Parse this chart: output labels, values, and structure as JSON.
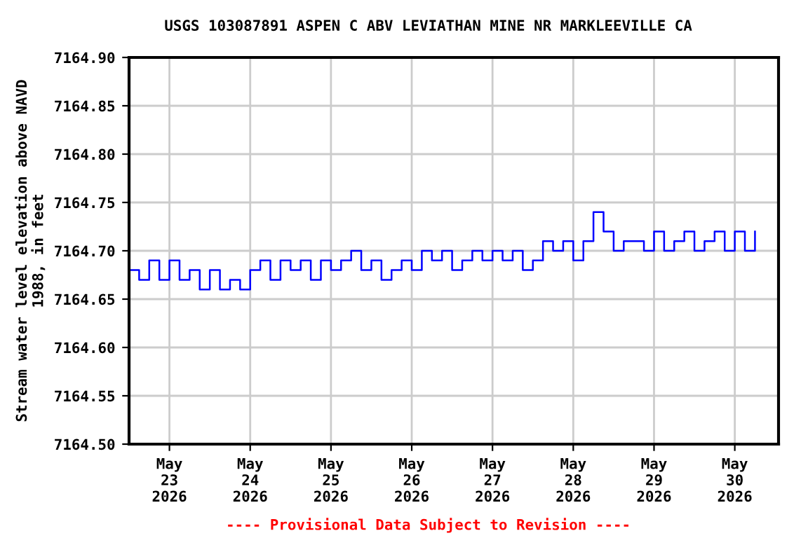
{
  "chart_data": {
    "type": "step",
    "title": "USGS 103087891 ASPEN C ABV LEVIATHAN MINE NR MARKLEEVILLE CA",
    "ylabel": "Stream water level elevation above NAVD\n1988, in feet",
    "annotations": [
      "---- Provisional Data Subject to Revision ----"
    ],
    "x": [
      "2026-05-22T12:00",
      "2026-05-22T15:00",
      "2026-05-22T18:00",
      "2026-05-22T21:00",
      "2026-05-23T00:00",
      "2026-05-23T03:00",
      "2026-05-23T06:00",
      "2026-05-23T09:00",
      "2026-05-23T12:00",
      "2026-05-23T15:00",
      "2026-05-23T18:00",
      "2026-05-23T21:00",
      "2026-05-24T00:00",
      "2026-05-24T03:00",
      "2026-05-24T06:00",
      "2026-05-24T09:00",
      "2026-05-24T12:00",
      "2026-05-24T15:00",
      "2026-05-24T18:00",
      "2026-05-24T21:00",
      "2026-05-25T00:00",
      "2026-05-25T03:00",
      "2026-05-25T06:00",
      "2026-05-25T09:00",
      "2026-05-25T12:00",
      "2026-05-25T15:00",
      "2026-05-25T18:00",
      "2026-05-25T21:00",
      "2026-05-26T00:00",
      "2026-05-26T03:00",
      "2026-05-26T06:00",
      "2026-05-26T09:00",
      "2026-05-26T12:00",
      "2026-05-26T15:00",
      "2026-05-26T18:00",
      "2026-05-26T21:00",
      "2026-05-27T00:00",
      "2026-05-27T03:00",
      "2026-05-27T06:00",
      "2026-05-27T09:00",
      "2026-05-27T12:00",
      "2026-05-27T15:00",
      "2026-05-27T18:00",
      "2026-05-27T21:00",
      "2026-05-28T00:00",
      "2026-05-28T03:00",
      "2026-05-28T06:00",
      "2026-05-28T09:00",
      "2026-05-28T12:00",
      "2026-05-28T15:00",
      "2026-05-28T18:00",
      "2026-05-28T21:00",
      "2026-05-29T00:00",
      "2026-05-29T03:00",
      "2026-05-29T06:00",
      "2026-05-29T09:00",
      "2026-05-29T12:00",
      "2026-05-29T15:00",
      "2026-05-29T18:00",
      "2026-05-29T21:00",
      "2026-05-30T00:00",
      "2026-05-30T03:00",
      "2026-05-30T06:00"
    ],
    "series": [
      {
        "color": "#0000ff",
        "values": [
          7164.68,
          7164.67,
          7164.69,
          7164.67,
          7164.69,
          7164.67,
          7164.68,
          7164.66,
          7164.68,
          7164.66,
          7164.67,
          7164.66,
          7164.68,
          7164.69,
          7164.67,
          7164.69,
          7164.68,
          7164.69,
          7164.67,
          7164.69,
          7164.68,
          7164.69,
          7164.7,
          7164.68,
          7164.69,
          7164.67,
          7164.68,
          7164.69,
          7164.68,
          7164.7,
          7164.69,
          7164.7,
          7164.68,
          7164.69,
          7164.7,
          7164.69,
          7164.7,
          7164.69,
          7164.7,
          7164.68,
          7164.69,
          7164.71,
          7164.7,
          7164.71,
          7164.69,
          7164.71,
          7164.74,
          7164.72,
          7164.7,
          7164.71,
          7164.71,
          7164.7,
          7164.72,
          7164.7,
          7164.71,
          7164.72,
          7164.7,
          7164.71,
          7164.72,
          7164.7,
          7164.72,
          7164.7,
          7164.72
        ]
      }
    ],
    "xlim": [
      "2026-05-22T12:00",
      "2026-05-30T13:00"
    ],
    "xticks": [
      {
        "value": "2026-05-23",
        "label": "May\n23\n2026"
      },
      {
        "value": "2026-05-24",
        "label": "May\n24\n2026"
      },
      {
        "value": "2026-05-25",
        "label": "May\n25\n2026"
      },
      {
        "value": "2026-05-26",
        "label": "May\n26\n2026"
      },
      {
        "value": "2026-05-27",
        "label": "May\n27\n2026"
      },
      {
        "value": "2026-05-28",
        "label": "May\n28\n2026"
      },
      {
        "value": "2026-05-29",
        "label": "May\n29\n2026"
      },
      {
        "value": "2026-05-30",
        "label": "May\n30\n2026"
      }
    ],
    "ylim": [
      7164.5,
      7164.9
    ],
    "yticks": [
      {
        "value": 7164.5,
        "label": "7164.50"
      },
      {
        "value": 7164.55,
        "label": "7164.55"
      },
      {
        "value": 7164.6,
        "label": "7164.60"
      },
      {
        "value": 7164.65,
        "label": "7164.65"
      },
      {
        "value": 7164.7,
        "label": "7164.70"
      },
      {
        "value": 7164.75,
        "label": "7164.75"
      },
      {
        "value": 7164.8,
        "label": "7164.80"
      },
      {
        "value": 7164.85,
        "label": "7164.85"
      },
      {
        "value": 7164.9,
        "label": "7164.90"
      }
    ],
    "grid": true,
    "marker": "none",
    "line_style": "solid"
  }
}
